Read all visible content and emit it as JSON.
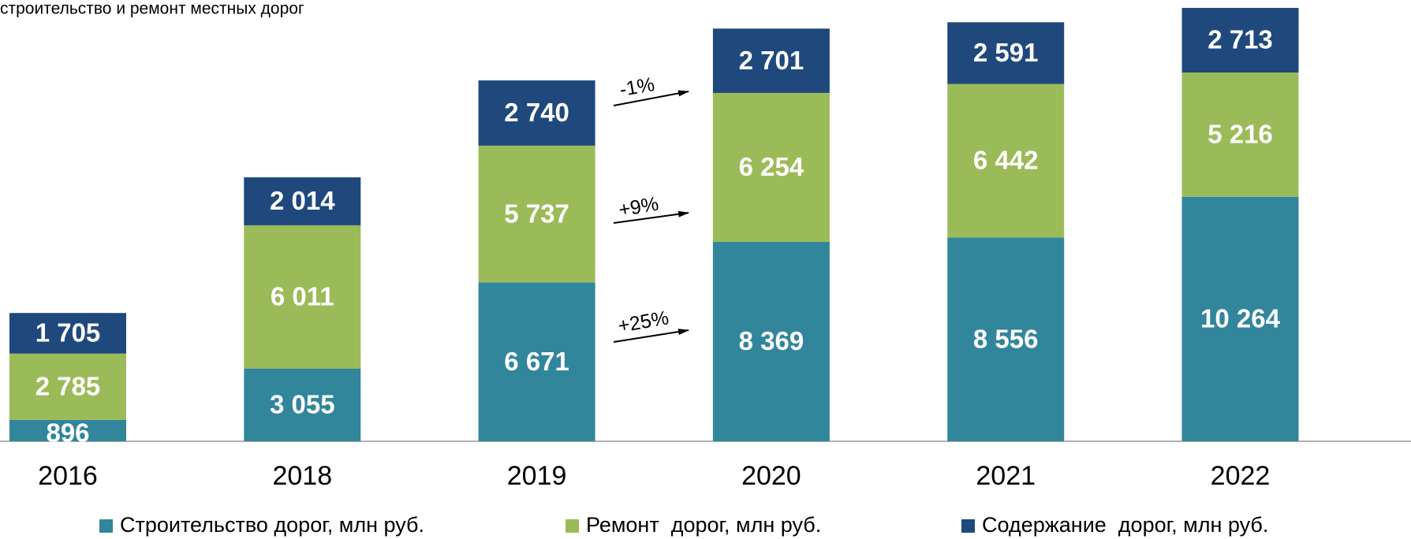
{
  "chart_data": {
    "type": "stacked_bar",
    "title": "строительство и ремонт местных дорог",
    "categories": [
      "2016",
      "2018",
      "2019",
      "2020",
      "2021",
      "2022"
    ],
    "series": [
      {
        "name": "Строительство дорог, млн руб.",
        "color": "#31869c",
        "values": [
          896,
          3055,
          6671,
          8369,
          8556,
          10264
        ],
        "value_labels": [
          "896",
          "3 055",
          "6 671",
          "8 369",
          "8 556",
          "10 264"
        ]
      },
      {
        "name": "Ремонт  дорог, млн руб.",
        "color": "#9bbb59",
        "values": [
          2785,
          6011,
          5737,
          6254,
          6442,
          5216
        ],
        "value_labels": [
          "2 785",
          "6 011",
          "5 737",
          "6 254",
          "6 442",
          "5 216"
        ]
      },
      {
        "name": "Содержание  дорог, млн руб.",
        "color": "#1f497d",
        "values": [
          1705,
          2014,
          2740,
          2701,
          2591,
          2713
        ],
        "value_labels": [
          "1 705",
          "2 014",
          "2 740",
          "2 701",
          "2 591",
          "2 713"
        ]
      }
    ],
    "annotations": [
      "-1%",
      "+9%",
      "+25%"
    ],
    "legend": "bottom"
  }
}
